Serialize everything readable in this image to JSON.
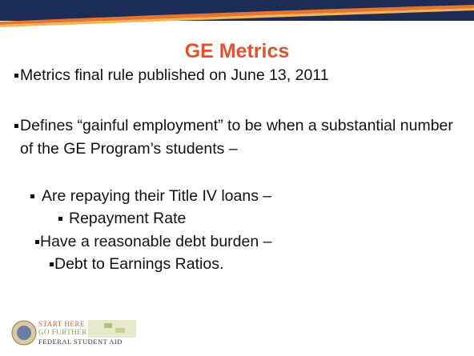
{
  "slide": {
    "title": "GE Metrics",
    "bullets": [
      {
        "level": 1,
        "text": "Metrics final rule published on June 13, 2011"
      },
      {
        "level": 1,
        "text": "Defines “gainful employment” to be when a substantial number of the GE Program’s students –"
      },
      {
        "level": 2,
        "text": "Are repaying their Title IV loans –"
      },
      {
        "level": 3,
        "text": "Repayment Rate"
      },
      {
        "level": 2,
        "text": "Have a reasonable debt burden –"
      },
      {
        "level": 3,
        "text": "Debt to Earnings Ratios."
      }
    ],
    "logo": {
      "line1": "START HERE",
      "line2": "GO FURTHER",
      "line3": "FEDERAL STUDENT AID"
    }
  }
}
